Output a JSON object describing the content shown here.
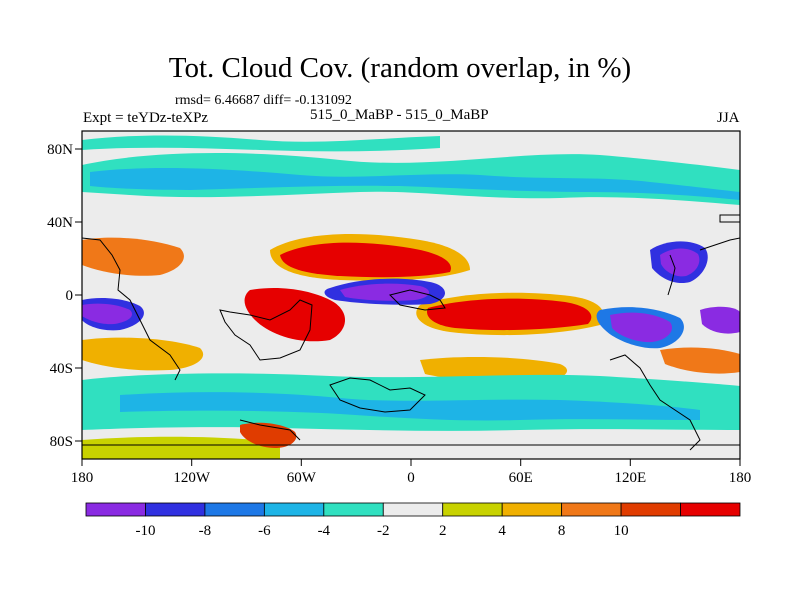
{
  "title": "Tot. Cloud Cov. (random overlap, in %)",
  "stats": "rmsd= 6.46687 diff= -0.131092",
  "expt": "Expt = teYDz-teXPz",
  "subtitle": "515_0_MaBP - 515_0_MaBP",
  "season": "JJA",
  "lon_ticks": [
    "180",
    "120W",
    "60W",
    "0",
    "60E",
    "120E",
    "180"
  ],
  "lat_ticks": [
    "80N",
    "40N",
    "0",
    "40S",
    "80S"
  ],
  "colorbar": {
    "colors": [
      "#8a2be2",
      "#3030e0",
      "#1e78e6",
      "#1eb4e6",
      "#30e0c0",
      "#ececec",
      "#c8d200",
      "#f0b000",
      "#f07818",
      "#e03c00",
      "#e60000"
    ],
    "labels": [
      "-10",
      "-8",
      "-6",
      "-4",
      "-2",
      "2",
      "4",
      "8",
      "10"
    ]
  }
}
